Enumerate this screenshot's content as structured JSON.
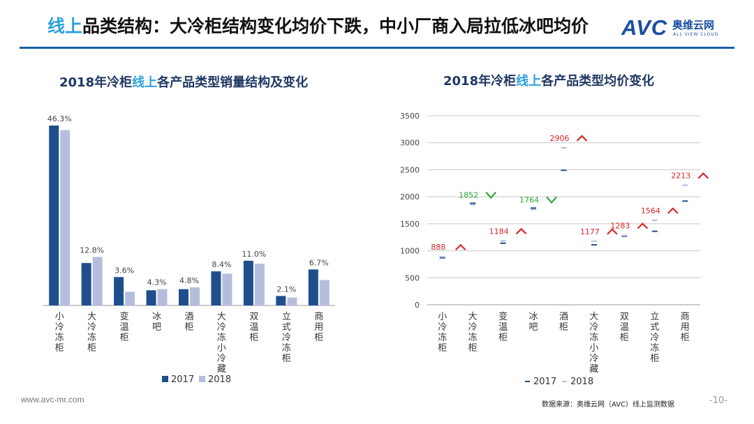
{
  "header": {
    "title_highlight": "线上",
    "title_rest": "品类结构：大冷柜结构变化均价下跌，中小厂商入局拉低冰吧均价"
  },
  "logo": {
    "mark": "AVC",
    "cn": "奥维云网",
    "en": "ALL VIEW CLOUD",
    "color": "#1a4fa0"
  },
  "colors": {
    "s2017": "#1f4e8c",
    "s2018": "#b4bedc",
    "up": "#d9262a",
    "down": "#2aaa3a",
    "accent": "#2aa0e0",
    "rule": "#1a5fa8"
  },
  "chart_data": [
    {
      "type": "bar",
      "title_parts": [
        "2018年冷柜",
        "线上",
        "各产品类型销量结构及变化"
      ],
      "categories": [
        "小冷冻柜",
        "大冷冻柜",
        "变温柜",
        "冰吧",
        "酒柜",
        "大冷冻小冷藏",
        "双温柜",
        "立式冷冻柜",
        "商用柜"
      ],
      "series": [
        {
          "name": "2017",
          "values": [
            47.5,
            11.2,
            7.5,
            4.0,
            4.3,
            9.0,
            11.8,
            2.5,
            9.5
          ]
        },
        {
          "name": "2018",
          "values": [
            46.3,
            12.8,
            3.6,
            4.3,
            4.8,
            8.4,
            11.0,
            2.1,
            6.7
          ]
        }
      ],
      "data_labels": [
        "46.3%",
        "12.8%",
        "3.6%",
        "4.3%",
        "4.8%",
        "8.4%",
        "11.0%",
        "2.1%",
        "6.7%"
      ],
      "ylim": [
        0,
        50
      ],
      "legend_position": "bottom"
    },
    {
      "type": "scatter",
      "title_parts": [
        "2018年冷柜",
        "线上",
        "各产品类型均价变化"
      ],
      "categories": [
        "小冷冻柜",
        "大冷冻柜",
        "变温柜",
        "冰吧",
        "酒柜",
        "大冷冻小冷藏",
        "双温柜",
        "立式冷冻柜",
        "商用柜"
      ],
      "series": [
        {
          "name": "2017",
          "values": [
            870,
            1880,
            1140,
            1790,
            2490,
            1110,
            1270,
            1360,
            1920
          ]
        },
        {
          "name": "2018",
          "values": [
            888,
            1852,
            1184,
            1764,
            2906,
            1177,
            1283,
            1564,
            2213
          ]
        }
      ],
      "data_labels": [
        "888",
        "1852",
        "1184",
        "1764",
        "2906",
        "1177",
        "1283",
        "1564",
        "2213"
      ],
      "change": [
        "up",
        "down",
        "up",
        "down",
        "up",
        "up",
        "up",
        "up",
        "up"
      ],
      "y_ticks": [
        0,
        500,
        1000,
        1500,
        2000,
        2500,
        3000,
        3500
      ],
      "ylim": [
        0,
        3500
      ],
      "grid": true,
      "legend_position": "bottom"
    }
  ],
  "footer": {
    "url": "www.avc-mr.com",
    "source": "数据来源：奥维云网（AVC）线上监测数据",
    "page": "-10-"
  }
}
